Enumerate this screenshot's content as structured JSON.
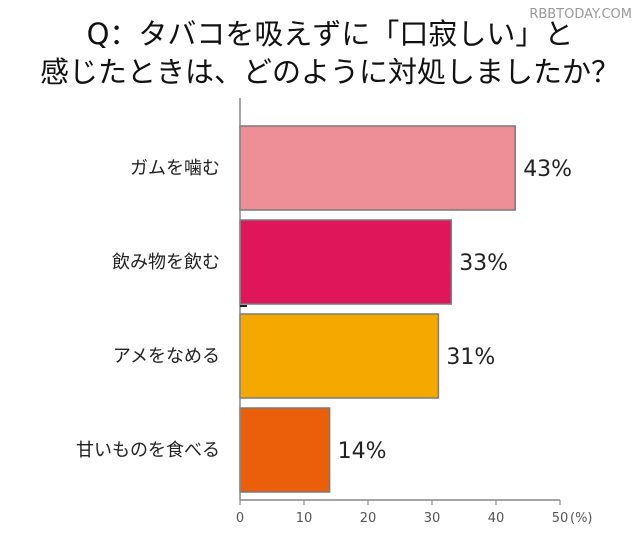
{
  "watermark": "RBBTODAY.COM",
  "chart_data": {
    "type": "bar",
    "orientation": "horizontal",
    "title_lines": [
      "Q：タバコを吸えずに「口寂しい」と",
      "感じたときは、どのように対処しましたか？"
    ],
    "categories": [
      "ガムを噛む",
      "飲み物を飲む",
      "アメをなめる",
      "甘いものを食べる"
    ],
    "values": [
      43,
      33,
      31,
      14
    ],
    "value_labels": [
      "43%",
      "33%",
      "31%",
      "14%"
    ],
    "colors": [
      "#ee8f97",
      "#e0165a",
      "#f5a800",
      "#ec5f0a"
    ],
    "x_ticks": [
      "0",
      "10",
      "20",
      "30",
      "40",
      "50"
    ],
    "x_unit": "(%)",
    "xlim": [
      0,
      50
    ],
    "grid": false
  }
}
